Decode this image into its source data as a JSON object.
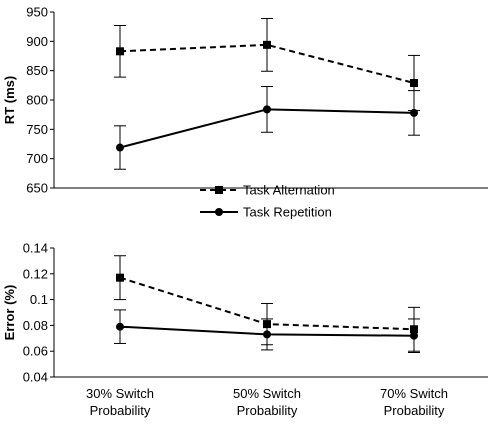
{
  "chart_data": [
    {
      "type": "line",
      "ylabel": "RT (ms)",
      "ylim": [
        650,
        950
      ],
      "yticks": [
        650,
        700,
        750,
        800,
        850,
        900,
        950
      ],
      "categories": [
        "30% Switch Probability",
        "50% Switch Probability",
        "70% Switch Probability"
      ],
      "series": [
        {
          "name": "Task Alternation",
          "style": "dashed",
          "marker": "square",
          "values": [
            883,
            894,
            829
          ],
          "error": [
            44,
            45,
            47
          ]
        },
        {
          "name": "Task Repetition",
          "style": "solid",
          "marker": "circle",
          "values": [
            719,
            784,
            778
          ],
          "error": [
            37,
            39,
            38
          ]
        }
      ],
      "legend_position": "bottom-center",
      "grid": false
    },
    {
      "type": "line",
      "ylabel": "Error (%)",
      "ylim": [
        0.04,
        0.14
      ],
      "yticks": [
        "0.04",
        "0.06",
        "0.08",
        "0.1",
        "0.12",
        "0.14"
      ],
      "categories": [
        "30% Switch Probability",
        "50% Switch Probability",
        "70% Switch Probability"
      ],
      "series": [
        {
          "name": "Task Alternation",
          "style": "dashed",
          "marker": "square",
          "values": [
            0.117,
            0.081,
            0.077
          ],
          "error": [
            0.017,
            0.016,
            0.017
          ]
        },
        {
          "name": "Task Repetition",
          "style": "solid",
          "marker": "circle",
          "values": [
            0.079,
            0.073,
            0.072
          ],
          "error": [
            0.013,
            0.012,
            0.013
          ]
        }
      ],
      "grid": false
    }
  ],
  "xaxis": {
    "categories": [
      {
        "line1": "30% Switch",
        "line2": "Probability"
      },
      {
        "line1": "50% Switch",
        "line2": "Probability"
      },
      {
        "line1": "70% Switch",
        "line2": "Probability"
      }
    ]
  },
  "legend": [
    {
      "label": "Task Alternation",
      "style": "dashed",
      "marker": "square"
    },
    {
      "label": "Task Repetition",
      "style": "solid",
      "marker": "circle"
    }
  ],
  "colors": {
    "line": "#000000",
    "background": "#ffffff"
  }
}
